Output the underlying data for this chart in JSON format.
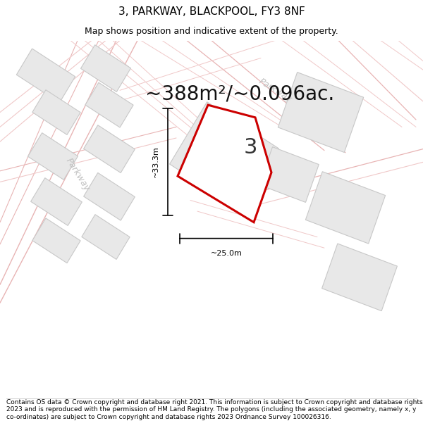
{
  "title": "3, PARKWAY, BLACKPOOL, FY3 8NF",
  "subtitle": "Map shows position and indicative extent of the property.",
  "area_text": "~388m²/~0.096ac.",
  "label_number": "3",
  "dim_width": "~25.0m",
  "dim_height": "~33.3m",
  "footer_text": "Contains OS data © Crown copyright and database right 2021. This information is subject to Crown copyright and database rights 2023 and is reproduced with the permission of HM Land Registry. The polygons (including the associated geometry, namely x, y co-ordinates) are subject to Crown copyright and database rights 2023 Ordnance Survey 100026316.",
  "bg_color": "#ffffff",
  "road_fill": "#f9f0f0",
  "road_line_main": "#e8b4b4",
  "road_line_light": "#f0c8c8",
  "road_line_outline": "#d8d8d8",
  "building_fill": "#e8e8e8",
  "building_edge": "#c8c8c8",
  "plot_fill": "#f0f0f0",
  "plot_edge": "#cc0000",
  "plot_edge_width": 2.0,
  "title_fontsize": 11,
  "subtitle_fontsize": 9,
  "area_fontsize": 20,
  "label_fontsize": 22,
  "footer_fontsize": 6.5,
  "parkway_label_color": "#c0c0c0",
  "parkway_label_size": 9
}
